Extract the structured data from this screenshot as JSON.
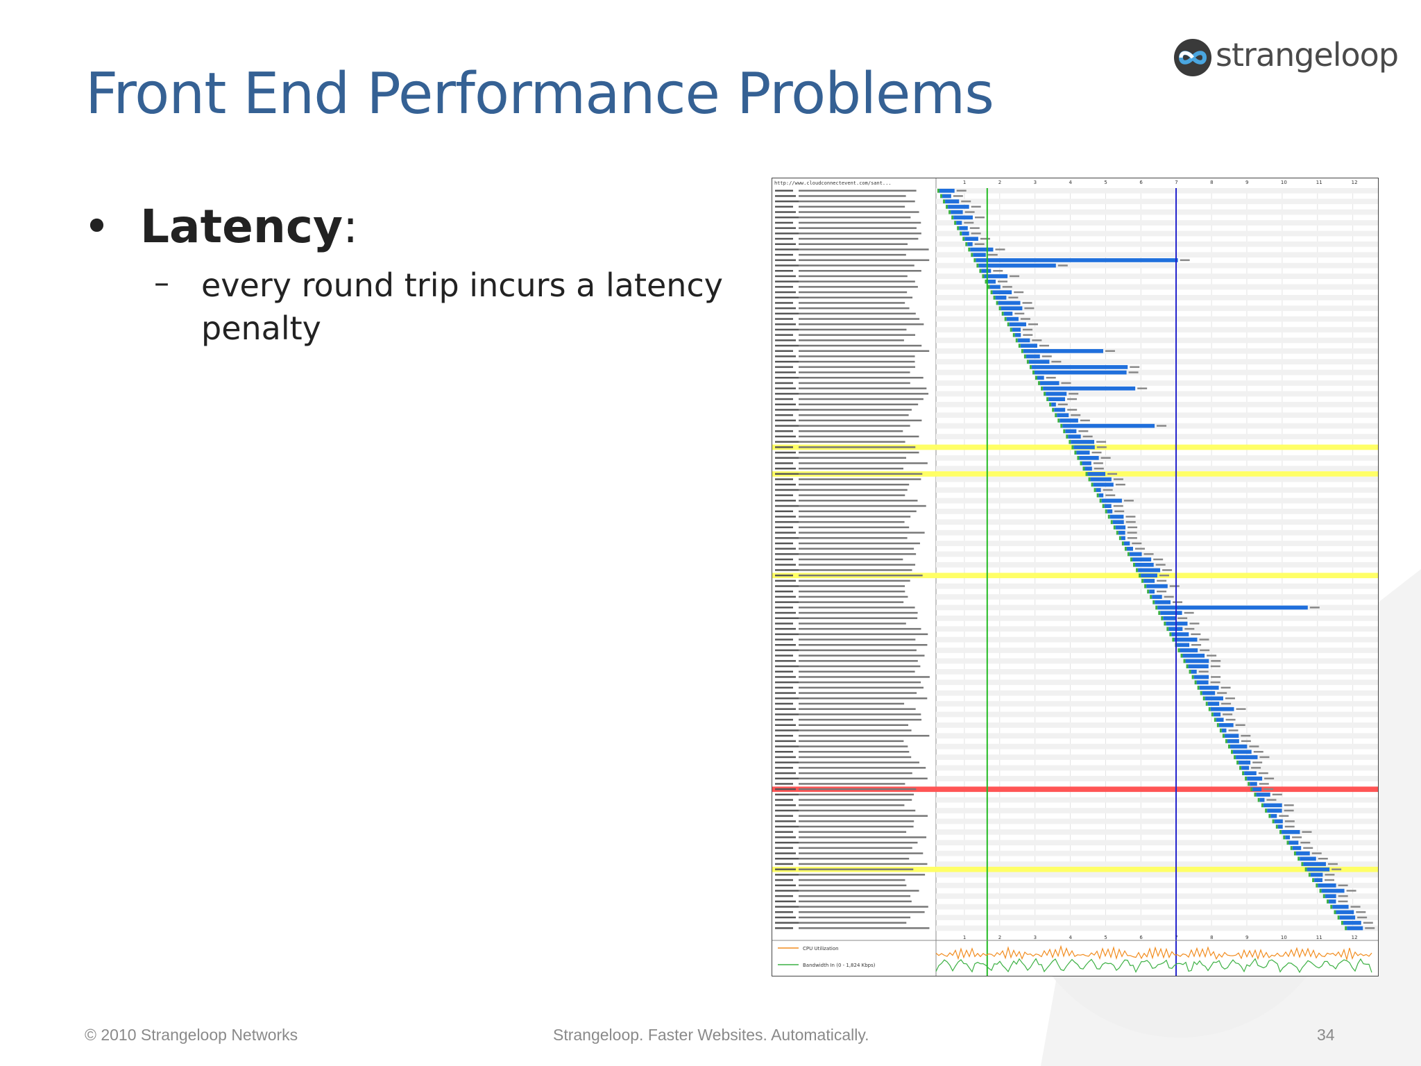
{
  "slide": {
    "title": "Front End Performance Problems",
    "logo_text": "strangeloop",
    "logo_icon": "strangeloop-infinity-icon"
  },
  "bullet": {
    "label": "Latency",
    "colon": ":",
    "sub_dash": "–",
    "sub_text": "every round trip incurs a latency penalty"
  },
  "waterfall": {
    "url_header": "http://www.cloudconnectevent.com/sant...",
    "time_ticks": [
      "1",
      "2",
      "3",
      "4",
      "5",
      "6",
      "7",
      "8",
      "9",
      "10",
      "11",
      "12"
    ],
    "cpu_label": "CPU Utilization",
    "bandwidth_label": "Bandwidth In (0 - 1,824 Kbps)",
    "colors": {
      "dns": "#1f9a80",
      "connect": "#f28c1e",
      "ttfb": "#3cb043",
      "download": "#1f6fdc",
      "highlight_redirect": "#ffff66",
      "highlight_error": "#ff5555",
      "start_render": "#22bb22",
      "doc_complete": "#2222cc"
    },
    "total_requests": 139
  },
  "footer": {
    "copyright": "© 2010 Strangeloop Networks",
    "tagline": "Strangeloop. Faster Websites. Automatically.",
    "page_number": "34"
  }
}
